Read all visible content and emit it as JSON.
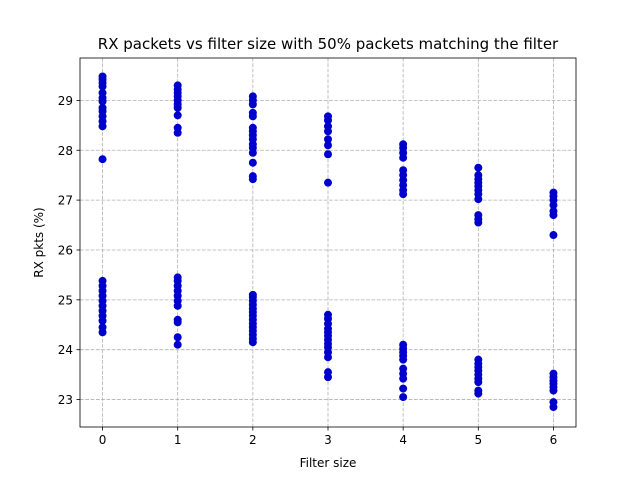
{
  "chart_data": {
    "type": "scatter",
    "title": "RX packets vs filter size with 50% packets matching the filter",
    "xlabel": "Filter size",
    "ylabel": "RX pkts (%)",
    "xlim": [
      -0.3,
      6.3
    ],
    "ylim": [
      22.45,
      29.85
    ],
    "xticks": [
      0,
      1,
      2,
      3,
      4,
      5,
      6
    ],
    "yticks": [
      23,
      24,
      25,
      26,
      27,
      28,
      29
    ],
    "grid": true,
    "legend": "none",
    "marker_color": "#0000cc",
    "series": [
      {
        "points": [
          [
            0,
            29.48
          ],
          [
            0,
            29.42
          ],
          [
            0,
            29.35
          ],
          [
            0,
            29.28
          ],
          [
            0,
            29.15
          ],
          [
            0,
            29.05
          ],
          [
            0,
            28.98
          ],
          [
            0,
            28.85
          ],
          [
            0,
            28.78
          ],
          [
            0,
            28.68
          ],
          [
            0,
            28.58
          ],
          [
            0,
            28.48
          ],
          [
            0,
            27.82
          ],
          [
            0,
            25.38
          ],
          [
            0,
            25.28
          ],
          [
            0,
            25.18
          ],
          [
            0,
            25.08
          ],
          [
            0,
            24.98
          ],
          [
            0,
            24.88
          ],
          [
            0,
            24.78
          ],
          [
            0,
            24.68
          ],
          [
            0,
            24.58
          ],
          [
            0,
            24.45
          ],
          [
            0,
            24.35
          ],
          [
            1,
            29.3
          ],
          [
            1,
            29.22
          ],
          [
            1,
            29.15
          ],
          [
            1,
            29.08
          ],
          [
            1,
            29.0
          ],
          [
            1,
            28.92
          ],
          [
            1,
            28.85
          ],
          [
            1,
            28.7
          ],
          [
            1,
            28.45
          ],
          [
            1,
            28.35
          ],
          [
            1,
            25.45
          ],
          [
            1,
            25.38
          ],
          [
            1,
            25.28
          ],
          [
            1,
            25.18
          ],
          [
            1,
            25.08
          ],
          [
            1,
            24.98
          ],
          [
            1,
            24.88
          ],
          [
            1,
            24.6
          ],
          [
            1,
            24.55
          ],
          [
            1,
            24.25
          ],
          [
            1,
            24.1
          ],
          [
            2,
            29.08
          ],
          [
            2,
            29.0
          ],
          [
            2,
            28.92
          ],
          [
            2,
            28.75
          ],
          [
            2,
            28.68
          ],
          [
            2,
            28.45
          ],
          [
            2,
            28.38
          ],
          [
            2,
            28.3
          ],
          [
            2,
            28.22
          ],
          [
            2,
            28.12
          ],
          [
            2,
            28.05
          ],
          [
            2,
            27.95
          ],
          [
            2,
            27.75
          ],
          [
            2,
            27.48
          ],
          [
            2,
            27.42
          ],
          [
            2,
            25.1
          ],
          [
            2,
            25.05
          ],
          [
            2,
            24.98
          ],
          [
            2,
            24.9
          ],
          [
            2,
            24.82
          ],
          [
            2,
            24.75
          ],
          [
            2,
            24.68
          ],
          [
            2,
            24.6
          ],
          [
            2,
            24.52
          ],
          [
            2,
            24.45
          ],
          [
            2,
            24.38
          ],
          [
            2,
            24.3
          ],
          [
            2,
            24.22
          ],
          [
            2,
            24.15
          ],
          [
            3,
            28.68
          ],
          [
            3,
            28.6
          ],
          [
            3,
            28.48
          ],
          [
            3,
            28.38
          ],
          [
            3,
            28.22
          ],
          [
            3,
            28.1
          ],
          [
            3,
            27.92
          ],
          [
            3,
            27.35
          ],
          [
            3,
            24.7
          ],
          [
            3,
            24.62
          ],
          [
            3,
            24.52
          ],
          [
            3,
            24.42
          ],
          [
            3,
            24.35
          ],
          [
            3,
            24.28
          ],
          [
            3,
            24.2
          ],
          [
            3,
            24.12
          ],
          [
            3,
            24.05
          ],
          [
            3,
            23.95
          ],
          [
            3,
            23.85
          ],
          [
            3,
            23.55
          ],
          [
            3,
            23.45
          ],
          [
            4,
            28.12
          ],
          [
            4,
            28.05
          ],
          [
            4,
            27.95
          ],
          [
            4,
            27.85
          ],
          [
            4,
            27.6
          ],
          [
            4,
            27.5
          ],
          [
            4,
            27.4
          ],
          [
            4,
            27.3
          ],
          [
            4,
            27.2
          ],
          [
            4,
            27.12
          ],
          [
            4,
            24.1
          ],
          [
            4,
            24.02
          ],
          [
            4,
            23.95
          ],
          [
            4,
            23.88
          ],
          [
            4,
            23.8
          ],
          [
            4,
            23.62
          ],
          [
            4,
            23.52
          ],
          [
            4,
            23.42
          ],
          [
            4,
            23.22
          ],
          [
            4,
            23.05
          ],
          [
            5,
            27.65
          ],
          [
            5,
            27.5
          ],
          [
            5,
            27.42
          ],
          [
            5,
            27.35
          ],
          [
            5,
            27.28
          ],
          [
            5,
            27.2
          ],
          [
            5,
            27.12
          ],
          [
            5,
            27.02
          ],
          [
            5,
            26.7
          ],
          [
            5,
            26.62
          ],
          [
            5,
            26.55
          ],
          [
            5,
            23.8
          ],
          [
            5,
            23.72
          ],
          [
            5,
            23.65
          ],
          [
            5,
            23.58
          ],
          [
            5,
            23.5
          ],
          [
            5,
            23.42
          ],
          [
            5,
            23.35
          ],
          [
            5,
            23.18
          ],
          [
            5,
            23.12
          ],
          [
            6,
            27.15
          ],
          [
            6,
            27.08
          ],
          [
            6,
            27.0
          ],
          [
            6,
            26.9
          ],
          [
            6,
            26.78
          ],
          [
            6,
            26.7
          ],
          [
            6,
            26.3
          ],
          [
            6,
            23.52
          ],
          [
            6,
            23.45
          ],
          [
            6,
            23.38
          ],
          [
            6,
            23.32
          ],
          [
            6,
            23.25
          ],
          [
            6,
            23.18
          ],
          [
            6,
            22.95
          ],
          [
            6,
            22.85
          ]
        ]
      }
    ]
  }
}
